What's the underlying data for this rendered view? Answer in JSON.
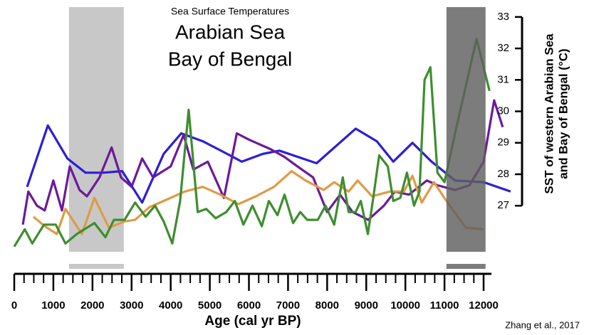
{
  "chart_data": {
    "type": "line",
    "title": "Sea Surface Temperatures",
    "subtitle": [
      "Arabian Sea",
      "Bay of Bengal"
    ],
    "xlabel": "Age (cal yr BP)",
    "ylabel": [
      "SST of western Arabian Sea",
      "and Bay of Bengal (°C)"
    ],
    "credit": "Zhang et al., 2017",
    "xlim": [
      0,
      12200
    ],
    "xticks": [
      0,
      1000,
      2000,
      3000,
      4000,
      5000,
      6000,
      7000,
      8000,
      9000,
      10000,
      11000,
      12000
    ],
    "ylim": [
      25.4,
      33.2
    ],
    "yticks": [
      27,
      28,
      29,
      30,
      31,
      32,
      33
    ],
    "y_axis_side": "right",
    "shaded_ranges": [
      {
        "from": 1400,
        "to": 2800,
        "color": "#c8c8c8",
        "layer": "back"
      },
      {
        "from": 11050,
        "to": 12050,
        "color": "rgba(95,95,95,0.82)",
        "layer": "front"
      }
    ],
    "series": [
      {
        "color": "#2b1fd6",
        "x": [
          330,
          860,
          1360,
          1820,
          2270,
          2760,
          3270,
          3820,
          4270,
          4820,
          5360,
          5820,
          6360,
          6780,
          7730,
          8730,
          9270,
          9690,
          10180,
          10670,
          11270,
          12000,
          12690
        ],
        "values": [
          27.6,
          29.55,
          28.5,
          28.05,
          28.05,
          28.1,
          27.1,
          28.65,
          29.3,
          29.05,
          28.7,
          28.4,
          28.65,
          28.75,
          28.35,
          29.45,
          29.05,
          28.4,
          29.0,
          28.4,
          27.8,
          27.75,
          27.45
        ]
      },
      {
        "color": "#6b1a9a",
        "x": [
          220,
          360,
          580,
          780,
          1000,
          1220,
          1420,
          1670,
          1860,
          2180,
          2490,
          2730,
          3000,
          3270,
          3550,
          4000,
          4330,
          4580,
          4950,
          5360,
          5690,
          6000,
          6550,
          6910,
          7240,
          7640,
          8000,
          8330,
          8650,
          9050,
          9450,
          9730,
          10090,
          10550,
          10820,
          11270,
          11640,
          12000,
          12270,
          12490
        ],
        "values": [
          26.4,
          27.45,
          27.0,
          26.85,
          27.8,
          26.85,
          28.25,
          27.5,
          27.3,
          27.9,
          28.85,
          27.9,
          27.6,
          28.5,
          27.9,
          28.25,
          29.25,
          28.15,
          28.4,
          27.25,
          29.3,
          29.1,
          28.8,
          28.55,
          28.25,
          27.9,
          26.8,
          27.35,
          26.8,
          26.55,
          27.0,
          27.45,
          27.35,
          27.8,
          27.65,
          27.5,
          27.65,
          28.4,
          30.35,
          29.5
        ]
      },
      {
        "color": "#e09a45",
        "x": [
          490,
          780,
          1090,
          1310,
          1730,
          2050,
          2420,
          2820,
          3090,
          3450,
          3910,
          4360,
          4820,
          5270,
          5730,
          6180,
          6640,
          7090,
          7450,
          7910,
          8180,
          8550,
          8780,
          9150,
          9600,
          9960,
          10180,
          10420,
          10730,
          11050,
          11550,
          12000
        ],
        "values": [
          26.65,
          26.35,
          26.1,
          26.9,
          26.1,
          27.25,
          26.3,
          26.5,
          26.55,
          26.95,
          27.2,
          27.45,
          27.6,
          27.35,
          27.05,
          27.3,
          27.6,
          28.1,
          27.8,
          27.5,
          27.75,
          27.45,
          27.8,
          27.3,
          27.45,
          27.45,
          27.95,
          27.1,
          27.75,
          27.15,
          26.3,
          26.25
        ]
      },
      {
        "color": "#3e8e2e",
        "x": [
          0,
          270,
          460,
          760,
          1060,
          1310,
          1600,
          2050,
          2330,
          2550,
          2820,
          3090,
          3360,
          3600,
          3820,
          4040,
          4240,
          4460,
          4690,
          4910,
          5150,
          5420,
          5640,
          5860,
          6090,
          6330,
          6510,
          6730,
          6910,
          7130,
          7310,
          7490,
          7760,
          7960,
          8180,
          8400,
          8550,
          8730,
          8860,
          9040,
          9180,
          9330,
          9550,
          9690,
          9870,
          10040,
          10220,
          10360,
          10490,
          10640,
          10820,
          11000,
          11270,
          11820,
          12150
        ],
        "values": [
          25.7,
          26.25,
          25.8,
          26.4,
          26.4,
          25.8,
          26.1,
          26.45,
          26.0,
          26.55,
          26.55,
          27.1,
          26.65,
          27.0,
          26.5,
          25.8,
          27.15,
          30.05,
          26.8,
          26.9,
          26.6,
          26.8,
          27.15,
          26.4,
          27.0,
          26.35,
          27.15,
          26.7,
          27.35,
          26.45,
          26.8,
          26.55,
          26.55,
          27.0,
          26.4,
          27.9,
          26.8,
          26.8,
          27.15,
          26.1,
          27.25,
          28.6,
          28.25,
          27.15,
          27.25,
          28.05,
          27.0,
          27.45,
          31.0,
          31.4,
          28.05,
          27.75,
          29.3,
          32.3,
          30.65
        ]
      }
    ]
  }
}
